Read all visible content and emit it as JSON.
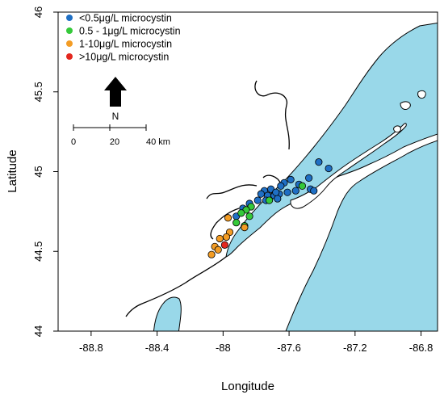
{
  "chart_data": {
    "type": "scatter",
    "xlabel": "Longitude",
    "ylabel": "Latitude",
    "xlim": [
      -89.0,
      -86.7
    ],
    "ylim": [
      44.0,
      46.0
    ],
    "x_ticks": [
      -88.8,
      -88.4,
      -88.0,
      -87.6,
      -87.2,
      -86.8
    ],
    "x_tick_labels": [
      "-88.8",
      "-88.4",
      "-88",
      "-87.6",
      "-87.2",
      "-86.8"
    ],
    "y_ticks": [
      44.0,
      44.5,
      45.0,
      45.5,
      46.0
    ],
    "y_tick_labels": [
      "44",
      "44.5",
      "45",
      "45.5",
      "46"
    ],
    "legend_position": "top-left",
    "colors": {
      "water": "#99d8e9",
      "land": "#ffffff",
      "shore": "#000000"
    },
    "legend": [
      {
        "label": "<0.5μg/L microcystin",
        "color": "#1f6fc4"
      },
      {
        "label": "0.5 - 1μg/L microcystin",
        "color": "#35c93a"
      },
      {
        "label": "1-10μg/L microcystin",
        "color": "#f39c24"
      },
      {
        "label": ">10μg/L microcystin",
        "color": "#e3271e"
      }
    ],
    "north_arrow": {
      "label": "N",
      "icon": "north-arrow-icon"
    },
    "scale_bar": {
      "labels": [
        "0",
        "20",
        "40 km"
      ],
      "unit": "km"
    },
    "series": [
      {
        "name": "<0.5μg/L microcystin",
        "color": "#1f6fc4",
        "points": [
          [
            -87.42,
            45.06
          ],
          [
            -87.36,
            45.02
          ],
          [
            -87.48,
            44.96
          ],
          [
            -87.59,
            44.95
          ],
          [
            -87.63,
            44.93
          ],
          [
            -87.54,
            44.92
          ],
          [
            -87.65,
            44.91
          ],
          [
            -87.56,
            44.88
          ],
          [
            -87.61,
            44.87
          ],
          [
            -87.66,
            44.86
          ],
          [
            -87.71,
            44.89
          ],
          [
            -87.75,
            44.88
          ],
          [
            -87.77,
            44.86
          ],
          [
            -87.73,
            44.85
          ],
          [
            -87.69,
            44.85
          ],
          [
            -87.67,
            44.83
          ],
          [
            -87.74,
            44.82
          ],
          [
            -87.79,
            44.82
          ],
          [
            -87.84,
            44.8
          ],
          [
            -87.88,
            44.77
          ],
          [
            -87.92,
            44.72
          ],
          [
            -87.47,
            44.89
          ],
          [
            -87.45,
            44.88
          ],
          [
            -87.68,
            44.87
          ]
        ]
      },
      {
        "name": "0.5 - 1μg/L microcystin",
        "color": "#35c93a",
        "points": [
          [
            -87.52,
            44.91
          ],
          [
            -87.72,
            44.82
          ],
          [
            -87.83,
            44.78
          ],
          [
            -87.86,
            44.76
          ],
          [
            -87.89,
            44.74
          ],
          [
            -87.84,
            44.72
          ],
          [
            -87.87,
            44.66
          ],
          [
            -87.92,
            44.68
          ]
        ]
      },
      {
        "name": "1-10μg/L microcystin",
        "color": "#f39c24",
        "points": [
          [
            -87.97,
            44.71
          ],
          [
            -87.96,
            44.62
          ],
          [
            -87.98,
            44.59
          ],
          [
            -88.02,
            44.58
          ],
          [
            -87.87,
            44.65
          ],
          [
            -88.05,
            44.53
          ],
          [
            -88.03,
            44.51
          ],
          [
            -88.07,
            44.48
          ]
        ]
      },
      {
        "name": ">10μg/L microcystin",
        "color": "#e3271e",
        "points": [
          [
            -87.99,
            44.54
          ]
        ]
      }
    ]
  }
}
